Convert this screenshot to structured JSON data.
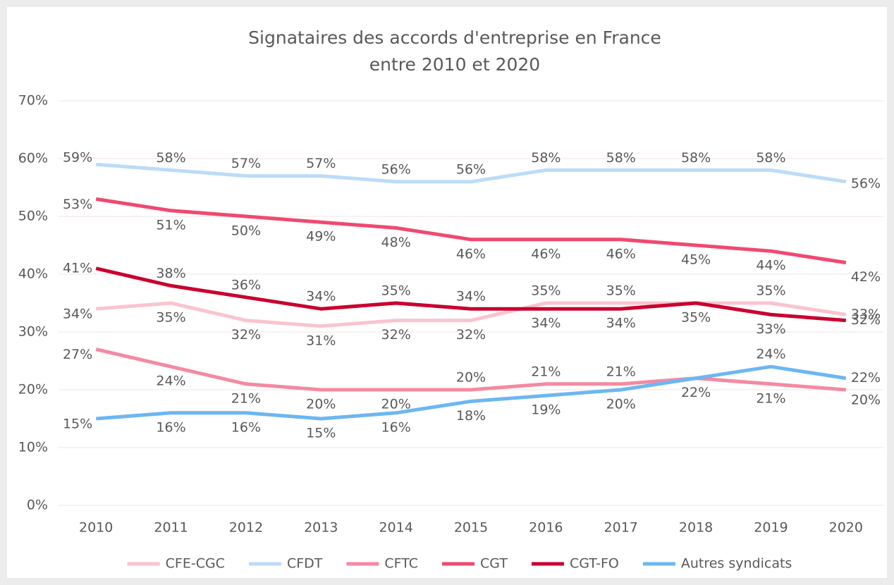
{
  "chart_data": {
    "type": "line",
    "title": [
      "Signataires des accords d'entreprise en France",
      "entre 2010 et 2020"
    ],
    "categories": [
      "2010",
      "2011",
      "2012",
      "2013",
      "2014",
      "2015",
      "2016",
      "2017",
      "2018",
      "2019",
      "2020"
    ],
    "ylim": [
      0,
      70
    ],
    "yticks": [
      {
        "value": 0,
        "label": "0%"
      },
      {
        "value": 10,
        "label": "10%"
      },
      {
        "value": 20,
        "label": "20%"
      },
      {
        "value": 30,
        "label": "30%"
      },
      {
        "value": 40,
        "label": "40%"
      },
      {
        "value": 50,
        "label": "50%"
      },
      {
        "value": 60,
        "label": "60%"
      },
      {
        "value": 70,
        "label": "70%"
      }
    ],
    "grid": true,
    "legend": "bottom",
    "series": [
      {
        "name": "CFE-CGC",
        "color": "#f9c4cf",
        "values": [
          34,
          35,
          32,
          31,
          32,
          32,
          35,
          35,
          35,
          35,
          33
        ],
        "value_labels": [
          "34%",
          "35%",
          "32%",
          "31%",
          "32%",
          "32%",
          "35%",
          "35%",
          null,
          "35%",
          "33%"
        ]
      },
      {
        "name": "CFDT",
        "color": "#bcdcf7",
        "values": [
          59,
          58,
          57,
          57,
          56,
          56,
          58,
          58,
          58,
          58,
          56
        ],
        "value_labels": [
          "59%",
          "58%",
          "57%",
          "57%",
          "56%",
          "56%",
          "58%",
          "58%",
          "58%",
          "58%",
          "56%"
        ]
      },
      {
        "name": "CFTC",
        "color": "#f48aa2",
        "values": [
          27,
          24,
          21,
          20,
          20,
          20,
          21,
          21,
          22,
          21,
          20
        ],
        "value_labels": [
          "27%",
          "24%",
          "21%",
          "20%",
          "20%",
          "20%",
          "21%",
          "21%",
          "22%",
          "21%",
          "20%"
        ]
      },
      {
        "name": "CGT",
        "color": "#f0496f",
        "values": [
          53,
          51,
          50,
          49,
          48,
          46,
          46,
          46,
          45,
          44,
          42
        ],
        "value_labels": [
          "53%",
          "51%",
          "50%",
          "49%",
          "48%",
          "46%",
          "46%",
          "46%",
          "45%",
          "44%",
          "42%"
        ]
      },
      {
        "name": "CGT-FO",
        "color": "#c8002f",
        "values": [
          41,
          38,
          36,
          34,
          35,
          34,
          34,
          34,
          35,
          33,
          32
        ],
        "value_labels": [
          "41%",
          "38%",
          "36%",
          "34%",
          "35%",
          "34%",
          "34%",
          "34%",
          "35%",
          "33%",
          "32%"
        ]
      },
      {
        "name": "Autres syndicats",
        "color": "#6bb7f2",
        "values": [
          15,
          16,
          16,
          15,
          16,
          18,
          19,
          20,
          22,
          24,
          22
        ],
        "value_labels": [
          "15%",
          "16%",
          "16%",
          "15%",
          "16%",
          "18%",
          "19%",
          "20%",
          null,
          "24%",
          "22%"
        ]
      }
    ]
  }
}
